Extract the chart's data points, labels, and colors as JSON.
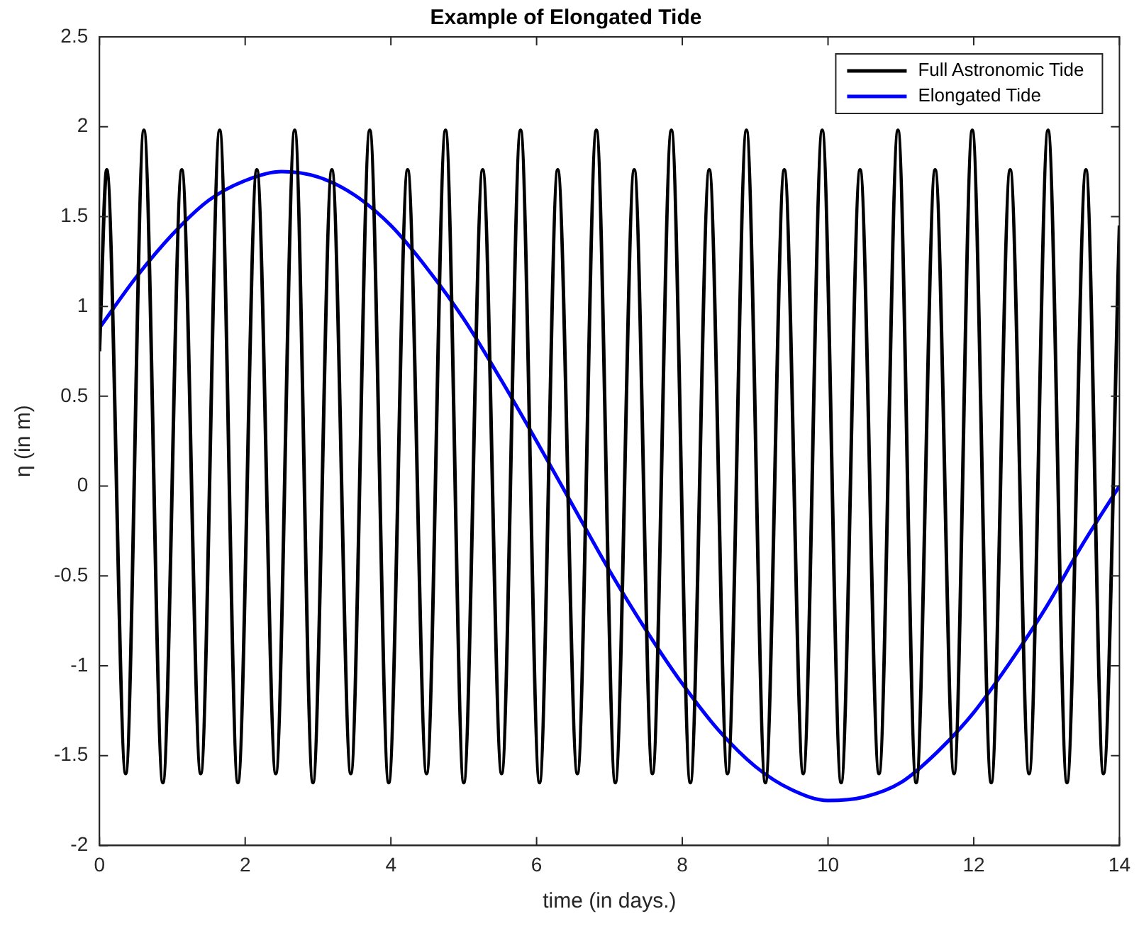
{
  "chart_data": {
    "type": "line",
    "title": "Example of Elongated Tide",
    "xlabel": "time (in days.)",
    "ylabel": "η (in m)",
    "xlim": [
      0,
      14
    ],
    "xticks": [
      0,
      2,
      4,
      6,
      8,
      10,
      12,
      14
    ],
    "ylim": [
      -2,
      2.5
    ],
    "yticks": [
      -2,
      -1.5,
      -1,
      -0.5,
      0,
      0.5,
      1,
      1.5,
      2,
      2.5
    ],
    "legend": "top right",
    "marker": "none",
    "line_style": "solid",
    "series": [
      {
        "name": "Full Astronomic Tide",
        "color": "#000000",
        "x": [
          0,
          0.1,
          0.36,
          0.61,
          0.87,
          1.13,
          1.39,
          1.65,
          1.9,
          2.16,
          2.42,
          2.68,
          2.93,
          3.19,
          3.45,
          3.71,
          3.97,
          4.23,
          4.49,
          4.75,
          5.0,
          5.26,
          5.52,
          5.78,
          6.04,
          6.29,
          6.56,
          6.82,
          7.08,
          7.34,
          7.59,
          7.85,
          8.11,
          8.37,
          8.62,
          8.88,
          9.14,
          9.4,
          9.66,
          9.92,
          10.18,
          10.44,
          10.7,
          10.96,
          11.21,
          11.47,
          11.73,
          11.98,
          12.24,
          12.5,
          12.76,
          13.02,
          13.28,
          13.54,
          13.78,
          14
        ],
        "values": [
          0.75,
          1.76,
          -1.6,
          1.98,
          -1.65,
          1.76,
          -1.6,
          1.98,
          -1.65,
          1.76,
          -1.6,
          1.98,
          -1.65,
          1.76,
          -1.6,
          1.98,
          -1.65,
          1.76,
          -1.6,
          1.98,
          -1.65,
          1.76,
          -1.6,
          1.98,
          -1.65,
          1.76,
          -1.6,
          1.98,
          -1.65,
          1.76,
          -1.6,
          1.98,
          -1.65,
          1.76,
          -1.6,
          1.98,
          -1.65,
          1.76,
          -1.6,
          1.98,
          -1.65,
          1.76,
          -1.6,
          1.98,
          -1.65,
          1.76,
          -1.6,
          1.98,
          -1.65,
          1.76,
          -1.6,
          1.98,
          -1.65,
          1.76,
          -1.6,
          1.45
        ]
      },
      {
        "name": "Elongated Tide",
        "color": "#0000ff",
        "x": [
          0,
          0.5,
          1,
          1.5,
          2,
          2.5,
          3,
          3.5,
          4,
          4.5,
          5,
          5.5,
          6,
          6.5,
          7,
          7.5,
          8,
          8.5,
          9,
          9.5,
          10,
          10.5,
          11,
          11.5,
          12,
          12.5,
          13,
          13.5,
          14
        ],
        "values": [
          0.88,
          1.16,
          1.4,
          1.59,
          1.7,
          1.75,
          1.72,
          1.62,
          1.45,
          1.21,
          0.93,
          0.6,
          0.25,
          -0.11,
          -0.47,
          -0.8,
          -1.1,
          -1.36,
          -1.56,
          -1.69,
          -1.75,
          -1.73,
          -1.65,
          -1.48,
          -1.26,
          -0.98,
          -0.67,
          -0.32,
          0
        ]
      }
    ]
  }
}
